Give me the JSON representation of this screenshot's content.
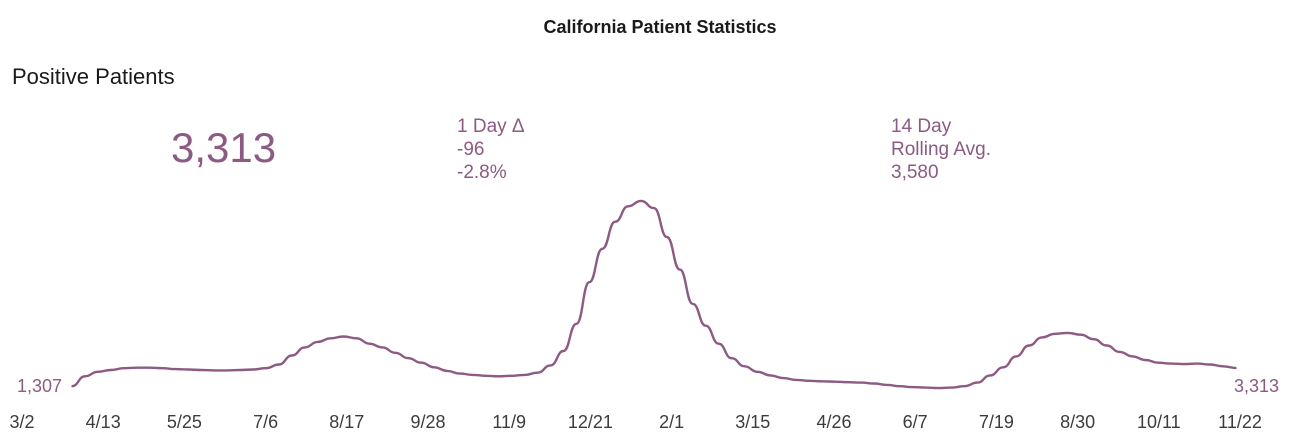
{
  "header": {
    "title": "California Patient Statistics",
    "section_title": "Positive Patients"
  },
  "kpis": {
    "current_value": "3,313",
    "day_change": {
      "label": "1 Day Δ",
      "value": "-96",
      "percent": "-2.8%"
    },
    "rolling_avg": {
      "label_line1": "14 Day",
      "label_line2": "Rolling Avg.",
      "value": "3,580"
    }
  },
  "colors": {
    "accent": "#8c5a83",
    "axis_text": "#3c3c3c",
    "title_text": "#1a1a1a"
  },
  "chart_data": {
    "type": "line",
    "title": "California Patient Statistics",
    "subtitle": "Positive Patients",
    "xlabel": "",
    "ylabel": "",
    "x_ticks": [
      "3/2",
      "4/13",
      "5/25",
      "7/6",
      "8/17",
      "9/28",
      "11/9",
      "12/21",
      "2/1",
      "3/15",
      "4/26",
      "6/7",
      "7/19",
      "8/30",
      "10/11",
      "11/22"
    ],
    "ylim": [
      0,
      23000
    ],
    "grid": false,
    "legend": "none",
    "start_label": "1,307",
    "end_label": "3,313",
    "series": [
      {
        "x": [
          "3/2",
          "3/9",
          "3/16",
          "3/23",
          "3/30",
          "4/6",
          "4/13",
          "4/20",
          "4/27",
          "5/4",
          "5/11",
          "5/18",
          "5/25",
          "6/1",
          "6/8",
          "6/15",
          "6/22",
          "6/29",
          "7/6",
          "7/13",
          "7/20",
          "7/27",
          "8/3",
          "8/10",
          "8/17",
          "8/24",
          "8/31",
          "9/7",
          "9/14",
          "9/21",
          "9/28",
          "10/5",
          "10/12",
          "10/19",
          "10/26",
          "11/2",
          "11/9",
          "11/16",
          "11/23",
          "11/30",
          "12/7",
          "12/14",
          "12/21",
          "12/28",
          "1/4",
          "1/11",
          "1/18",
          "1/25",
          "2/1",
          "2/8",
          "2/15",
          "2/22",
          "3/1",
          "3/8",
          "3/15",
          "3/22",
          "3/29",
          "4/5",
          "4/12",
          "4/19",
          "4/26",
          "5/3",
          "5/10",
          "5/17",
          "5/24",
          "5/31",
          "6/7",
          "6/14",
          "6/21",
          "6/28",
          "7/5",
          "7/12",
          "7/19",
          "7/26",
          "8/2",
          "8/9",
          "8/16",
          "8/23",
          "8/30",
          "9/6",
          "9/13",
          "9/20",
          "9/27",
          "10/4",
          "10/11",
          "10/18",
          "10/25",
          "11/1",
          "11/8",
          "11/15",
          "11/22"
        ],
        "values": [
          1307,
          2400,
          2900,
          3100,
          3300,
          3350,
          3350,
          3300,
          3200,
          3150,
          3100,
          3050,
          3050,
          3100,
          3150,
          3300,
          3700,
          4700,
          5600,
          6200,
          6600,
          6800,
          6600,
          6000,
          5600,
          5000,
          4400,
          3900,
          3400,
          3000,
          2700,
          2550,
          2450,
          2400,
          2450,
          2550,
          2800,
          3600,
          5200,
          8200,
          12800,
          16500,
          19500,
          21200,
          21800,
          21000,
          17800,
          14200,
          10400,
          8000,
          6000,
          4400,
          3500,
          2900,
          2500,
          2200,
          2000,
          1900,
          1850,
          1800,
          1750,
          1700,
          1600,
          1450,
          1300,
          1200,
          1150,
          1100,
          1150,
          1300,
          1700,
          2500,
          3400,
          4600,
          5800,
          6700,
          7100,
          7200,
          7000,
          6500,
          5800,
          5100,
          4600,
          4200,
          3900,
          3800,
          3750,
          3800,
          3700,
          3500,
          3313
        ]
      }
    ]
  }
}
